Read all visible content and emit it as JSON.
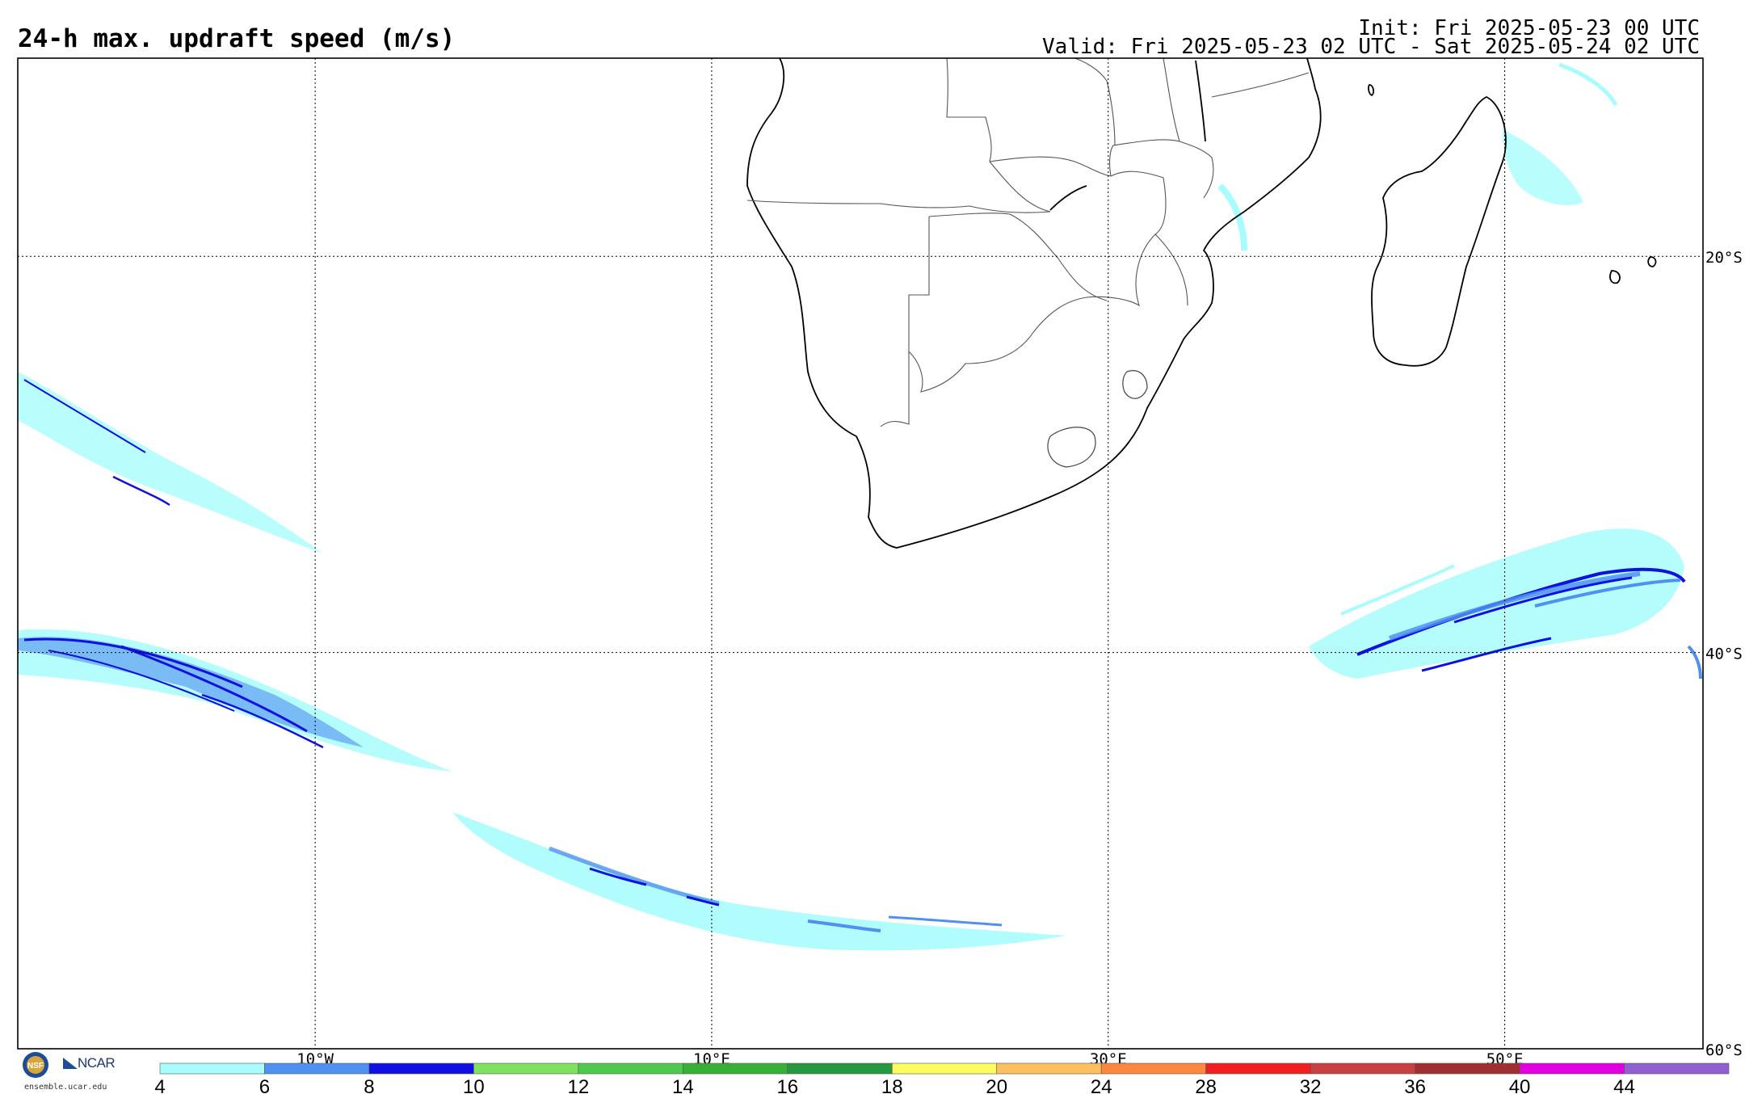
{
  "header": {
    "title": "24-h max. updraft speed (m/s)",
    "init": "Init: Fri 2025-05-23 00 UTC",
    "valid": "Valid: Fri 2025-05-23 02 UTC - Sat 2025-05-24 02 UTC"
  },
  "map": {
    "lon_range": [
      -17.5,
      67.5
    ],
    "lat_range": [
      -60,
      -10
    ],
    "lat_gridlines": [
      {
        "value": -20,
        "label": "20°S"
      },
      {
        "value": -40,
        "label": "40°S"
      },
      {
        "value": -60,
        "label": "60°S"
      }
    ],
    "lon_gridlines": [
      {
        "value": -2.5,
        "label": "10°W"
      },
      {
        "value": 17.5,
        "label": "10°E"
      },
      {
        "value": 37.5,
        "label": "30°E"
      },
      {
        "value": 57.5,
        "label": "50°E"
      }
    ],
    "gridline_style": "dotted"
  },
  "colorbar": {
    "ticks": [
      "4",
      "6",
      "8",
      "10",
      "12",
      "14",
      "16",
      "18",
      "20",
      "24",
      "28",
      "32",
      "36",
      "40",
      "44"
    ],
    "colors": [
      "#a8fcfc",
      "#5090f0",
      "#1010e0",
      "#80e060",
      "#50c850",
      "#38b038",
      "#289840",
      "#fcfc60",
      "#fcc060",
      "#fc8840",
      "#f02020",
      "#c84040",
      "#a03030",
      "#e000e0",
      "#9060d0"
    ]
  },
  "branding": {
    "nsf": "NSF",
    "ncar": "NCAR",
    "url": "ensemble.ucar.edu"
  }
}
